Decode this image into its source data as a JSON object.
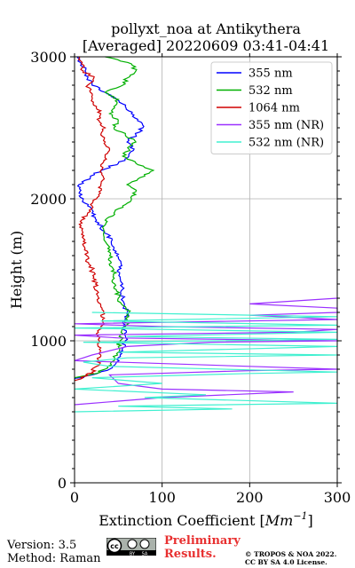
{
  "chart_data": {
    "type": "line",
    "title_line1": "pollyxt_noa at Antikythera",
    "title_line2": "[Averaged] 20220609 03:41-04:41",
    "xlabel": "Extinction Coefficient [$Mm^{-1}$]",
    "xlabel_main": "Extinction Coefficient [",
    "xlabel_unit": "Mm",
    "xlabel_exp": "−1",
    "xlabel_close": "]",
    "ylabel": "Height (m)",
    "xlim": [
      0,
      300
    ],
    "ylim": [
      0,
      3000
    ],
    "x_ticks": [
      0,
      100,
      200,
      300
    ],
    "y_ticks": [
      0,
      1000,
      2000,
      3000
    ],
    "grid": true,
    "legend_position": "top-right",
    "series": [
      {
        "name": "355 nm",
        "color": "#0000ff",
        "points": [
          [
            0,
            730
          ],
          [
            20,
            760
          ],
          [
            40,
            800
          ],
          [
            48,
            850
          ],
          [
            52,
            900
          ],
          [
            55,
            950
          ],
          [
            58,
            1000
          ],
          [
            57,
            1050
          ],
          [
            56,
            1100
          ],
          [
            58,
            1150
          ],
          [
            60,
            1200
          ],
          [
            57,
            1250
          ],
          [
            55,
            1300
          ],
          [
            53,
            1350
          ],
          [
            55,
            1400
          ],
          [
            52,
            1450
          ],
          [
            50,
            1500
          ],
          [
            53,
            1550
          ],
          [
            48,
            1600
          ],
          [
            45,
            1650
          ],
          [
            42,
            1700
          ],
          [
            38,
            1750
          ],
          [
            30,
            1800
          ],
          [
            25,
            1850
          ],
          [
            20,
            1900
          ],
          [
            15,
            1950
          ],
          [
            10,
            2000
          ],
          [
            6,
            2050
          ],
          [
            5,
            2100
          ],
          [
            18,
            2150
          ],
          [
            30,
            2200
          ],
          [
            50,
            2250
          ],
          [
            62,
            2300
          ],
          [
            68,
            2350
          ],
          [
            60,
            2400
          ],
          [
            70,
            2450
          ],
          [
            78,
            2500
          ],
          [
            72,
            2550
          ],
          [
            65,
            2600
          ],
          [
            58,
            2650
          ],
          [
            48,
            2700
          ],
          [
            35,
            2750
          ],
          [
            20,
            2800
          ],
          [
            15,
            2850
          ],
          [
            12,
            2900
          ],
          [
            8,
            2950
          ],
          [
            3,
            3000
          ]
        ]
      },
      {
        "name": "532 nm",
        "color": "#00b000",
        "points": [
          [
            0,
            740
          ],
          [
            25,
            770
          ],
          [
            38,
            810
          ],
          [
            45,
            860
          ],
          [
            48,
            910
          ],
          [
            50,
            960
          ],
          [
            52,
            1000
          ],
          [
            55,
            1050
          ],
          [
            58,
            1100
          ],
          [
            60,
            1150
          ],
          [
            62,
            1200
          ],
          [
            55,
            1250
          ],
          [
            50,
            1300
          ],
          [
            48,
            1350
          ],
          [
            46,
            1400
          ],
          [
            44,
            1450
          ],
          [
            45,
            1500
          ],
          [
            42,
            1550
          ],
          [
            40,
            1600
          ],
          [
            38,
            1650
          ],
          [
            35,
            1700
          ],
          [
            33,
            1750
          ],
          [
            32,
            1800
          ],
          [
            35,
            1850
          ],
          [
            45,
            1900
          ],
          [
            55,
            1950
          ],
          [
            65,
            2000
          ],
          [
            70,
            2050
          ],
          [
            60,
            2100
          ],
          [
            75,
            2150
          ],
          [
            90,
            2200
          ],
          [
            70,
            2250
          ],
          [
            55,
            2300
          ],
          [
            62,
            2350
          ],
          [
            70,
            2400
          ],
          [
            58,
            2450
          ],
          [
            45,
            2500
          ],
          [
            50,
            2550
          ],
          [
            40,
            2600
          ],
          [
            45,
            2650
          ],
          [
            50,
            2700
          ],
          [
            35,
            2750
          ],
          [
            55,
            2800
          ],
          [
            60,
            2850
          ],
          [
            70,
            2900
          ],
          [
            65,
            2950
          ],
          [
            35,
            3000
          ]
        ]
      },
      {
        "name": "1064 nm",
        "color": "#d00000",
        "points": [
          [
            0,
            720
          ],
          [
            12,
            750
          ],
          [
            20,
            780
          ],
          [
            25,
            820
          ],
          [
            28,
            860
          ],
          [
            30,
            900
          ],
          [
            30,
            950
          ],
          [
            28,
            1000
          ],
          [
            25,
            1050
          ],
          [
            30,
            1100
          ],
          [
            32,
            1150
          ],
          [
            33,
            1200
          ],
          [
            30,
            1250
          ],
          [
            28,
            1300
          ],
          [
            26,
            1350
          ],
          [
            24,
            1400
          ],
          [
            22,
            1450
          ],
          [
            20,
            1500
          ],
          [
            16,
            1550
          ],
          [
            14,
            1600
          ],
          [
            12,
            1650
          ],
          [
            10,
            1700
          ],
          [
            8,
            1750
          ],
          [
            6,
            1800
          ],
          [
            8,
            1850
          ],
          [
            15,
            1900
          ],
          [
            20,
            1950
          ],
          [
            25,
            2000
          ],
          [
            28,
            2050
          ],
          [
            30,
            2100
          ],
          [
            33,
            2150
          ],
          [
            30,
            2200
          ],
          [
            32,
            2250
          ],
          [
            35,
            2300
          ],
          [
            40,
            2350
          ],
          [
            35,
            2400
          ],
          [
            30,
            2450
          ],
          [
            35,
            2500
          ],
          [
            28,
            2550
          ],
          [
            30,
            2600
          ],
          [
            25,
            2650
          ],
          [
            20,
            2700
          ],
          [
            18,
            2750
          ],
          [
            15,
            2800
          ],
          [
            22,
            2850
          ],
          [
            10,
            2900
          ],
          [
            8,
            2950
          ],
          [
            5,
            3000
          ]
        ]
      },
      {
        "name": "355 nm (NR)",
        "color": "#9b30ff",
        "points": [
          [
            0,
            550
          ],
          [
            100,
            600
          ],
          [
            250,
            640
          ],
          [
            100,
            660
          ],
          [
            50,
            700
          ],
          [
            40,
            760
          ],
          [
            200,
            790
          ],
          [
            300,
            800
          ],
          [
            150,
            830
          ],
          [
            0,
            860
          ],
          [
            20,
            900
          ],
          [
            60,
            960
          ],
          [
            155,
            990
          ],
          [
            300,
            1000
          ],
          [
            50,
            1020
          ],
          [
            0,
            1040
          ],
          [
            250,
            1060
          ],
          [
            300,
            1080
          ],
          [
            100,
            1100
          ],
          [
            0,
            1120
          ],
          [
            300,
            1150
          ],
          [
            200,
            1180
          ],
          [
            300,
            1200
          ],
          [
            300,
            1230
          ],
          [
            200,
            1260
          ],
          [
            300,
            1300
          ]
        ]
      },
      {
        "name": "532 nm (NR)",
        "color": "#40f0d0",
        "points": [
          [
            0,
            500
          ],
          [
            180,
            520
          ],
          [
            50,
            540
          ],
          [
            300,
            560
          ],
          [
            80,
            600
          ],
          [
            150,
            620
          ],
          [
            0,
            660
          ],
          [
            100,
            700
          ],
          [
            20,
            740
          ],
          [
            200,
            770
          ],
          [
            300,
            780
          ],
          [
            40,
            820
          ],
          [
            10,
            850
          ],
          [
            60,
            880
          ],
          [
            300,
            900
          ],
          [
            50,
            920
          ],
          [
            300,
            960
          ],
          [
            10,
            990
          ],
          [
            300,
            1010
          ],
          [
            60,
            1030
          ],
          [
            300,
            1060
          ],
          [
            0,
            1090
          ],
          [
            300,
            1110
          ],
          [
            30,
            1140
          ],
          [
            300,
            1170
          ],
          [
            20,
            1200
          ]
        ]
      }
    ]
  },
  "footer": {
    "version": "Version: 3.5",
    "method": "Method: Raman",
    "preliminary_line1": "Preliminary",
    "preliminary_line2": "Results.",
    "copyright_line1": "© TROPOS & NOA 2022.",
    "copyright_line2": "CC BY SA 4.0 License."
  },
  "badge": {
    "icon": "cc-by-sa-icon",
    "label_cc": "cc",
    "label_by": "BY",
    "label_sa": "SA"
  }
}
